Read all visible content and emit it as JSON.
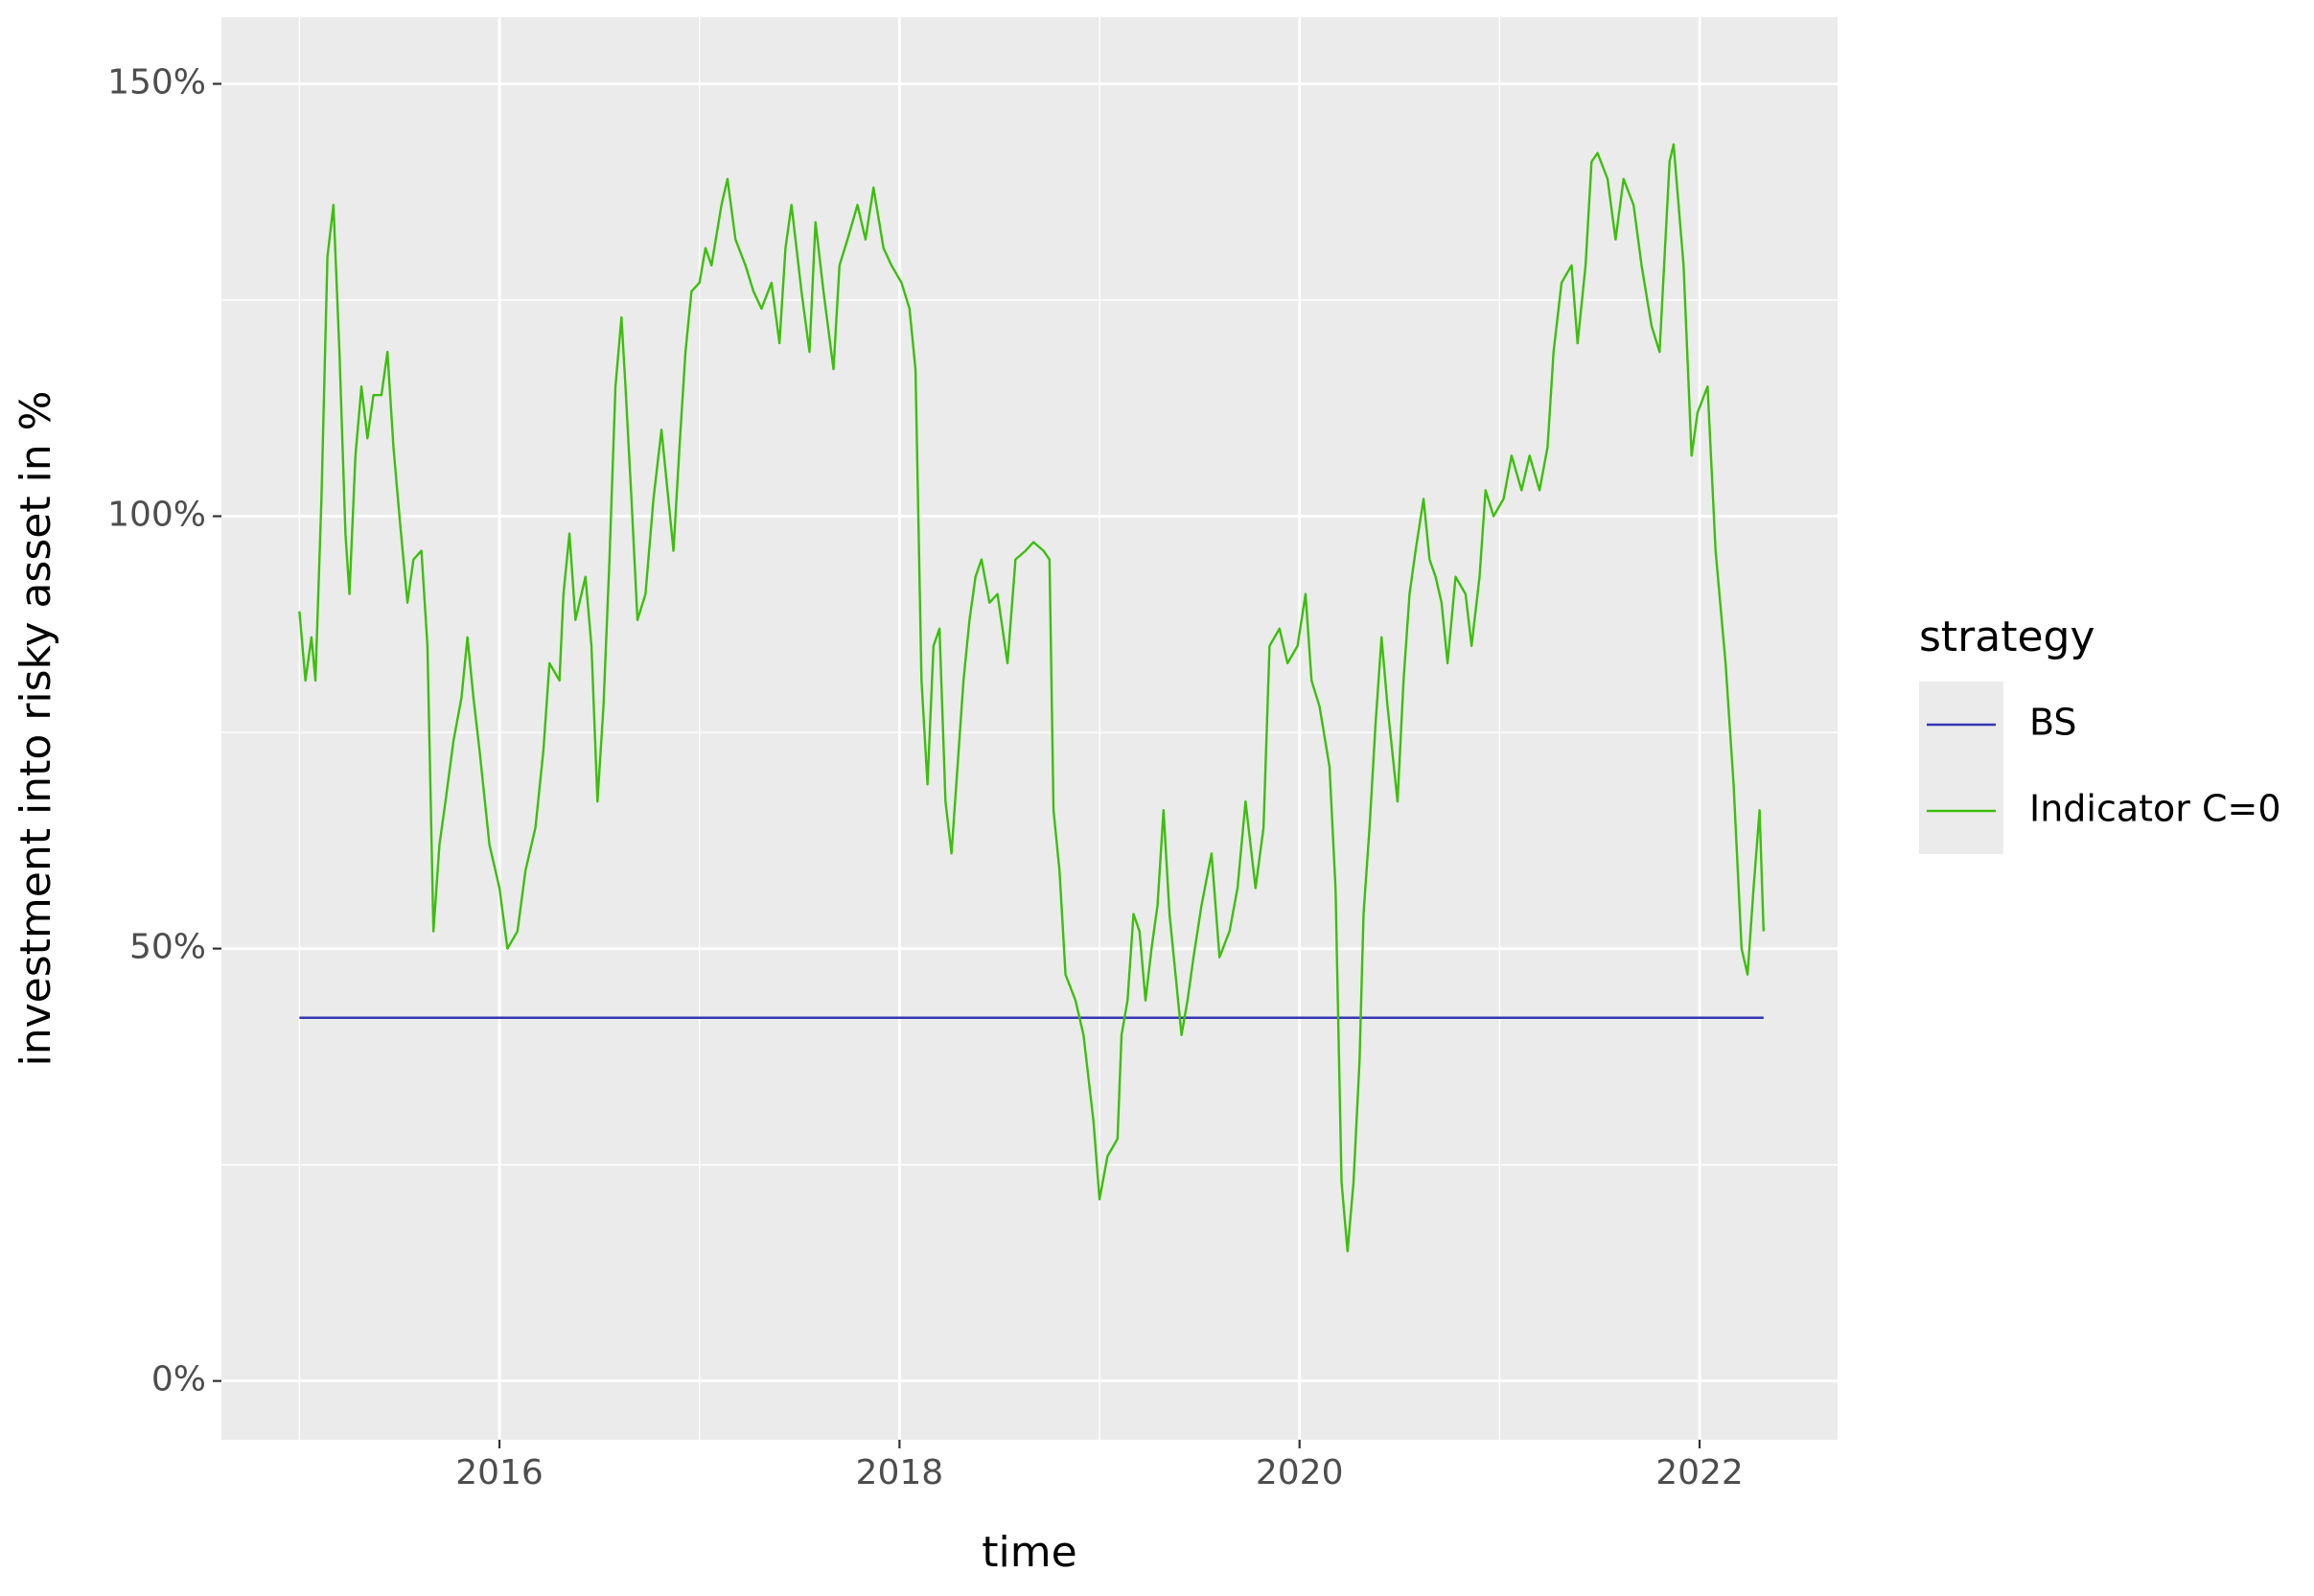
{
  "chart_data": {
    "type": "line",
    "x_label": "time",
    "y_label": "investment into risky asset in %",
    "legend_title": "strategy",
    "legend": "right",
    "grid": true,
    "xlim": [
      2014.61,
      2022.69
    ],
    "ylim": [
      -6.8,
      157.7
    ],
    "xticks": [
      2016,
      2018,
      2020,
      2022
    ],
    "yticks": [
      {
        "value": 0,
        "label": "0%"
      },
      {
        "value": 50,
        "label": "50%"
      },
      {
        "value": 100,
        "label": "100%"
      },
      {
        "value": 150,
        "label": "150%"
      }
    ],
    "series": [
      {
        "name": "BS",
        "color": "#3535b5",
        "x": [
          2015.0,
          2022.32
        ],
        "values": [
          42,
          42
        ]
      },
      {
        "name": "Indicator C=0",
        "color": "#3cbf0c",
        "x": [
          2015.0,
          2015.03,
          2015.06,
          2015.08,
          2015.11,
          2015.14,
          2015.17,
          2015.2,
          2015.23,
          2015.25,
          2015.28,
          2015.31,
          2015.34,
          2015.37,
          2015.41,
          2015.44,
          2015.47,
          2015.5,
          2015.54,
          2015.57,
          2015.61,
          2015.64,
          2015.67,
          2015.7,
          2015.73,
          2015.77,
          2015.81,
          2015.84,
          2015.87,
          2015.9,
          2015.95,
          2016.0,
          2016.04,
          2016.09,
          2016.13,
          2016.18,
          2016.22,
          2016.25,
          2016.3,
          2016.32,
          2016.35,
          2016.38,
          2016.43,
          2016.46,
          2016.49,
          2016.52,
          2016.55,
          2016.58,
          2016.61,
          2016.63,
          2016.66,
          2016.69,
          2016.73,
          2016.77,
          2016.81,
          2016.84,
          2016.87,
          2016.9,
          2016.93,
          2016.96,
          2017.0,
          2017.03,
          2017.06,
          2017.11,
          2017.14,
          2017.18,
          2017.23,
          2017.27,
          2017.31,
          2017.36,
          2017.4,
          2017.43,
          2017.46,
          2017.51,
          2017.55,
          2017.58,
          2017.62,
          2017.67,
          2017.7,
          2017.74,
          2017.79,
          2017.83,
          2017.87,
          2017.92,
          2017.96,
          2018.01,
          2018.05,
          2018.08,
          2018.11,
          2018.14,
          2018.17,
          2018.2,
          2018.23,
          2018.26,
          2018.29,
          2018.32,
          2018.35,
          2018.38,
          2018.41,
          2018.45,
          2018.49,
          2018.54,
          2018.58,
          2018.63,
          2018.67,
          2018.72,
          2018.75,
          2018.77,
          2018.8,
          2018.83,
          2018.88,
          2018.92,
          2018.97,
          2019.0,
          2019.04,
          2019.09,
          2019.11,
          2019.14,
          2019.17,
          2019.2,
          2019.23,
          2019.26,
          2019.29,
          2019.32,
          2019.35,
          2019.38,
          2019.41,
          2019.44,
          2019.47,
          2019.51,
          2019.56,
          2019.6,
          2019.65,
          2019.69,
          2019.73,
          2019.78,
          2019.82,
          2019.85,
          2019.9,
          2019.94,
          2019.99,
          2020.03,
          2020.06,
          2020.1,
          2020.15,
          2020.18,
          2020.21,
          2020.24,
          2020.27,
          2020.3,
          2020.32,
          2020.35,
          2020.38,
          2020.41,
          2020.44,
          2020.49,
          2020.52,
          2020.55,
          2020.58,
          2020.62,
          2020.65,
          2020.68,
          2020.71,
          2020.74,
          2020.78,
          2020.83,
          2020.86,
          2020.9,
          2020.93,
          2020.97,
          2021.02,
          2021.06,
          2021.11,
          2021.15,
          2021.2,
          2021.24,
          2021.27,
          2021.31,
          2021.36,
          2021.39,
          2021.43,
          2021.46,
          2021.49,
          2021.54,
          2021.58,
          2021.62,
          2021.67,
          2021.71,
          2021.76,
          2021.8,
          2021.85,
          2021.87,
          2021.92,
          2021.96,
          2021.99,
          2022.04,
          2022.08,
          2022.13,
          2022.17,
          2022.21,
          2022.24,
          2022.27,
          2022.3,
          2022.32
        ],
        "values": [
          89,
          81,
          86,
          81,
          102,
          130,
          136,
          119,
          98,
          91,
          107,
          115,
          109,
          114,
          114,
          119,
          108,
          100,
          90,
          95,
          96,
          85,
          52,
          62,
          67,
          74,
          79,
          86,
          79,
          73,
          62,
          57,
          50,
          52,
          59,
          64,
          73,
          83,
          81,
          91,
          98,
          88,
          93,
          85,
          67,
          78,
          95,
          115,
          123,
          115,
          102,
          88,
          91,
          102,
          110,
          103,
          96,
          108,
          119,
          126,
          127,
          131,
          129,
          136,
          139,
          132,
          129,
          126,
          124,
          127,
          120,
          131,
          136,
          126,
          119,
          134,
          126,
          117,
          129,
          132,
          136,
          132,
          138,
          131,
          129,
          127,
          124,
          117,
          81,
          69,
          85,
          87,
          67,
          61,
          71,
          81,
          88,
          93,
          95,
          90,
          91,
          83,
          95,
          96,
          97,
          96,
          95,
          66,
          59,
          47,
          44,
          40,
          30,
          21,
          26,
          28,
          40,
          44,
          54,
          52,
          44,
          50,
          55,
          66,
          54,
          47,
          40,
          44,
          49,
          55,
          61,
          49,
          52,
          57,
          67,
          57,
          64,
          85,
          87,
          83,
          85,
          91,
          81,
          78,
          71,
          57,
          23,
          15,
          23,
          37,
          54,
          64,
          76,
          86,
          78,
          67,
          81,
          91,
          96,
          102,
          95,
          93,
          90,
          83,
          93,
          91,
          85,
          93,
          103,
          100,
          102,
          107,
          103,
          107,
          103,
          108,
          119,
          127,
          129,
          120,
          129,
          141,
          142,
          139,
          132,
          139,
          136,
          129,
          122,
          119,
          141,
          143,
          129,
          107,
          112,
          115,
          96,
          83,
          69,
          50,
          47,
          57,
          66,
          52
        ]
      }
    ]
  }
}
